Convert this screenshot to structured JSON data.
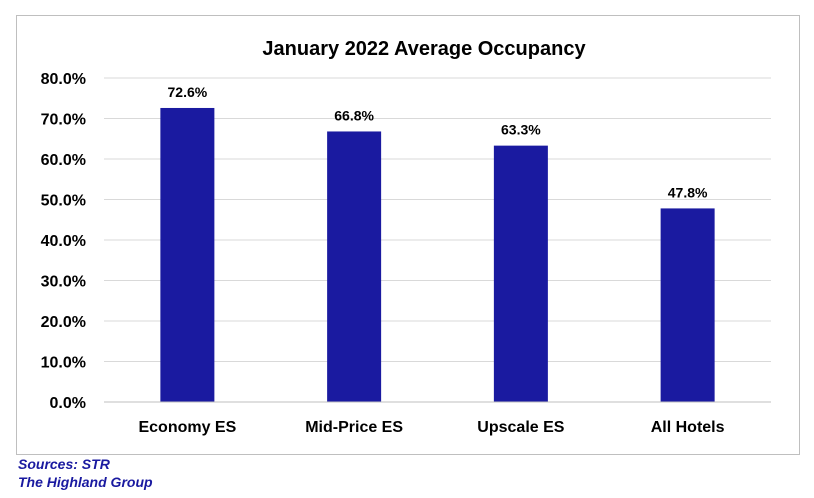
{
  "chart_data": {
    "type": "bar",
    "title": "January 2022 Average Occupancy",
    "categories": [
      "Economy ES",
      "Mid-Price ES",
      "Upscale ES",
      "All Hotels"
    ],
    "values": [
      72.6,
      66.8,
      63.3,
      47.8
    ],
    "data_labels": [
      "72.6%",
      "66.8%",
      "63.3%",
      "47.8%"
    ],
    "ylim": [
      0,
      80
    ],
    "yticks": [
      0,
      10,
      20,
      30,
      40,
      50,
      60,
      70,
      80
    ],
    "ytick_labels": [
      "0.0%",
      "10.0%",
      "20.0%",
      "30.0%",
      "40.0%",
      "50.0%",
      "60.0%",
      "70.0%",
      "80.0%"
    ],
    "grid": true,
    "bar_color": "#1a1aa0",
    "grid_color": "#d9d9d9"
  },
  "sources": {
    "line1": "Sources: STR",
    "line2": "The Highland Group"
  }
}
